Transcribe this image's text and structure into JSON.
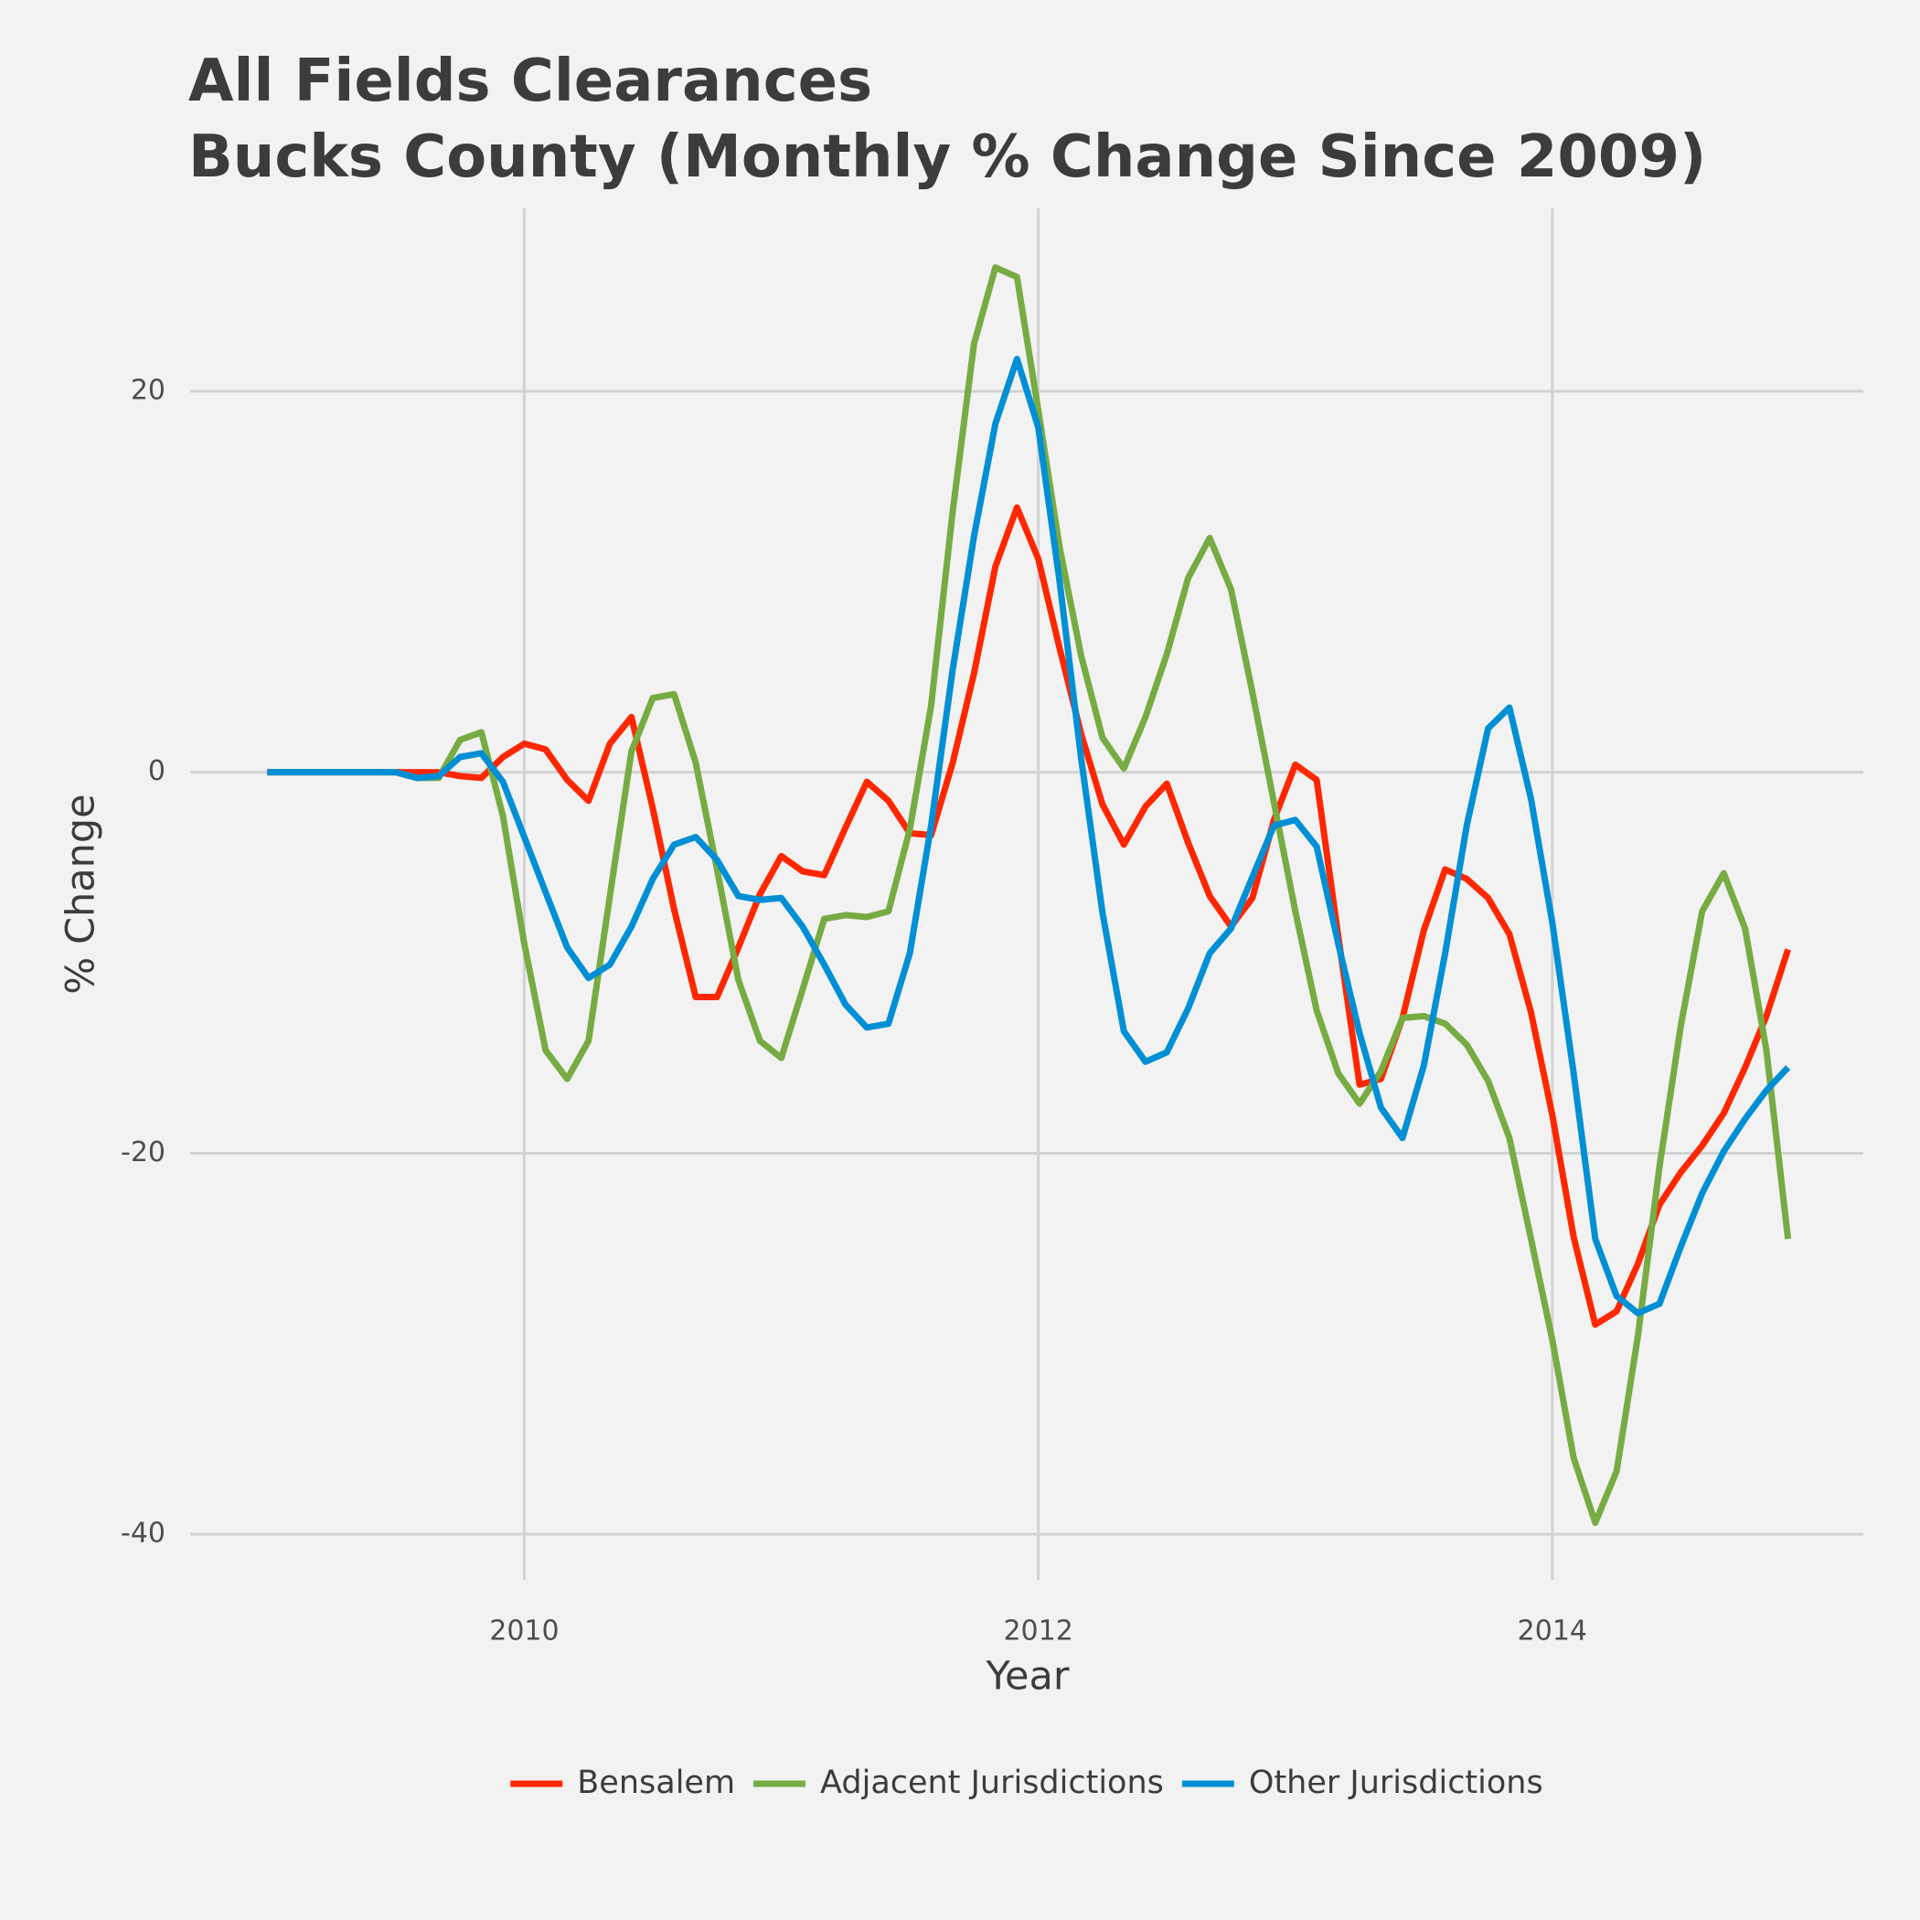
{
  "chart_data": {
    "type": "line",
    "title": [
      "All Fields Clearances",
      "Bucks County (Monthly % Change Since 2009)"
    ],
    "x_label": "Year",
    "y_label": "% Change",
    "x": [
      2009,
      2009.083,
      2009.167,
      2009.25,
      2009.333,
      2009.417,
      2009.5,
      2009.583,
      2009.667,
      2009.75,
      2009.833,
      2009.917,
      2010,
      2010.083,
      2010.167,
      2010.25,
      2010.333,
      2010.417,
      2010.5,
      2010.583,
      2010.667,
      2010.75,
      2010.833,
      2010.917,
      2011,
      2011.083,
      2011.167,
      2011.25,
      2011.333,
      2011.417,
      2011.5,
      2011.583,
      2011.667,
      2011.75,
      2011.833,
      2011.917,
      2012,
      2012.083,
      2012.167,
      2012.25,
      2012.333,
      2012.417,
      2012.5,
      2012.583,
      2012.667,
      2012.75,
      2012.833,
      2012.917,
      2013,
      2013.083,
      2013.167,
      2013.25,
      2013.333,
      2013.417,
      2013.5,
      2013.583,
      2013.667,
      2013.75,
      2013.833,
      2013.917,
      2014,
      2014.083,
      2014.167,
      2014.25,
      2014.333,
      2014.417,
      2014.5,
      2014.583,
      2014.667,
      2014.75,
      2014.833,
      2014.917
    ],
    "series": [
      {
        "name": "Bensalem",
        "color": "#ff2700",
        "values": [
          0,
          0,
          0,
          0,
          0,
          0,
          0,
          0,
          0,
          -0.2,
          -0.3,
          0.8,
          1.5,
          1.2,
          -0.4,
          -1.5,
          1.5,
          2.9,
          -1.9,
          -7.2,
          -11.8,
          -11.8,
          -9.2,
          -6.4,
          -4.4,
          -5.2,
          -5.4,
          -2.9,
          -0.5,
          -1.5,
          -3.2,
          -3.3,
          0.5,
          5.2,
          10.8,
          13.9,
          11.2,
          6.5,
          2,
          -1.7,
          -3.8,
          -1.8,
          -0.6,
          -3.7,
          -6.5,
          -8.1,
          -6.6,
          -2.5,
          0.4,
          -0.4,
          -8.6,
          -16.4,
          -16.1,
          -12.9,
          -8.3,
          -5.1,
          -5.6,
          -6.6,
          -8.5,
          -12.6,
          -18,
          -24.4,
          -29,
          -28.3,
          -25.8,
          -22.7,
          -21,
          -19.6,
          -17.9,
          -15.5,
          -12.8,
          -9.3
        ]
      },
      {
        "name": "Adjacent Jurisdictions",
        "color": "#77ab43",
        "values": [
          0,
          0,
          0,
          0,
          0,
          0,
          0,
          -0.3,
          -0.3,
          1.7,
          2.1,
          -2.3,
          -9,
          -14.6,
          -16.1,
          -14.1,
          -6.5,
          1.1,
          3.9,
          4.1,
          0.5,
          -5.1,
          -10.9,
          -14.1,
          -15,
          -11.4,
          -7.7,
          -7.5,
          -7.6,
          -7.3,
          -3,
          3.5,
          13.7,
          22.5,
          26.5,
          26,
          19,
          11.8,
          6.1,
          1.8,
          0.2,
          2.9,
          6.2,
          10.2,
          12.3,
          9.6,
          4.2,
          -1.6,
          -7.3,
          -12.5,
          -15.8,
          -17.4,
          -15.7,
          -12.9,
          -12.8,
          -13.2,
          -14.3,
          -16.2,
          -19.2,
          -24.5,
          -29.8,
          -36,
          -39.4,
          -36.7,
          -29.6,
          -20.7,
          -13.3,
          -7.3,
          -5.3,
          -8.2,
          -14.6,
          -24.5
        ]
      },
      {
        "name": "Other Jurisdictions",
        "color": "#008fd5",
        "values": [
          0,
          0,
          0,
          0,
          0,
          0,
          0,
          -0.3,
          -0.2,
          0.8,
          1,
          -0.5,
          -3.4,
          -6.3,
          -9.2,
          -10.8,
          -10.1,
          -8.1,
          -5.6,
          -3.8,
          -3.4,
          -4.6,
          -6.5,
          -6.7,
          -6.6,
          -8.1,
          -10.1,
          -12.2,
          -13.4,
          -13.2,
          -9.5,
          -2.8,
          5.4,
          12.4,
          18.3,
          21.7,
          18.1,
          10,
          0.7,
          -7.4,
          -13.6,
          -15.2,
          -14.7,
          -12.4,
          -9.5,
          -8.2,
          -5.5,
          -2.8,
          -2.5,
          -3.9,
          -9,
          -13.7,
          -17.6,
          -19.2,
          -15.4,
          -9.5,
          -2.8,
          2.3,
          3.4,
          -1.4,
          -7.9,
          -15.8,
          -24.5,
          -27.5,
          -28.4,
          -27.9,
          -24.9,
          -22.1,
          -19.9,
          -18.2,
          -16.7,
          -15.5
        ]
      }
    ],
    "xlim": [
      2008.7,
      2015.21
    ],
    "ylim": [
      -42.4,
      29.6
    ],
    "xticks": [
      2010,
      2012,
      2014
    ],
    "yticks": [
      -40,
      -20,
      0,
      20
    ],
    "grid": true,
    "legend": "bottom"
  }
}
